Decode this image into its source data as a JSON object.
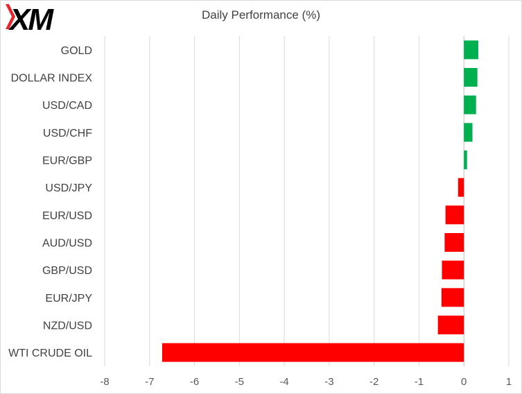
{
  "chart_data": {
    "type": "bar",
    "orientation": "horizontal",
    "title": "Daily Performance  (%)",
    "categories": [
      "GOLD",
      "DOLLAR INDEX",
      "USD/CAD",
      "USD/CHF",
      "EUR/GBP",
      "USD/JPY",
      "EUR/USD",
      "AUD/USD",
      "GBP/USD",
      "EUR/JPY",
      "NZD/USD",
      "WTI CRUDE OIL"
    ],
    "values": [
      0.32,
      0.3,
      0.27,
      0.19,
      0.07,
      -0.13,
      -0.41,
      -0.43,
      -0.49,
      -0.5,
      -0.58,
      -6.72
    ],
    "xlim": [
      -8,
      1
    ],
    "xticks": [
      -8,
      -7,
      -6,
      -5,
      -4,
      -3,
      -2,
      -1,
      0,
      1
    ],
    "grid": "vertical",
    "colors": {
      "positive": "#00b050",
      "negative": "#ff0000"
    }
  },
  "logo": {
    "text": "XM",
    "color": "#000000",
    "accent": "#e4272b"
  }
}
